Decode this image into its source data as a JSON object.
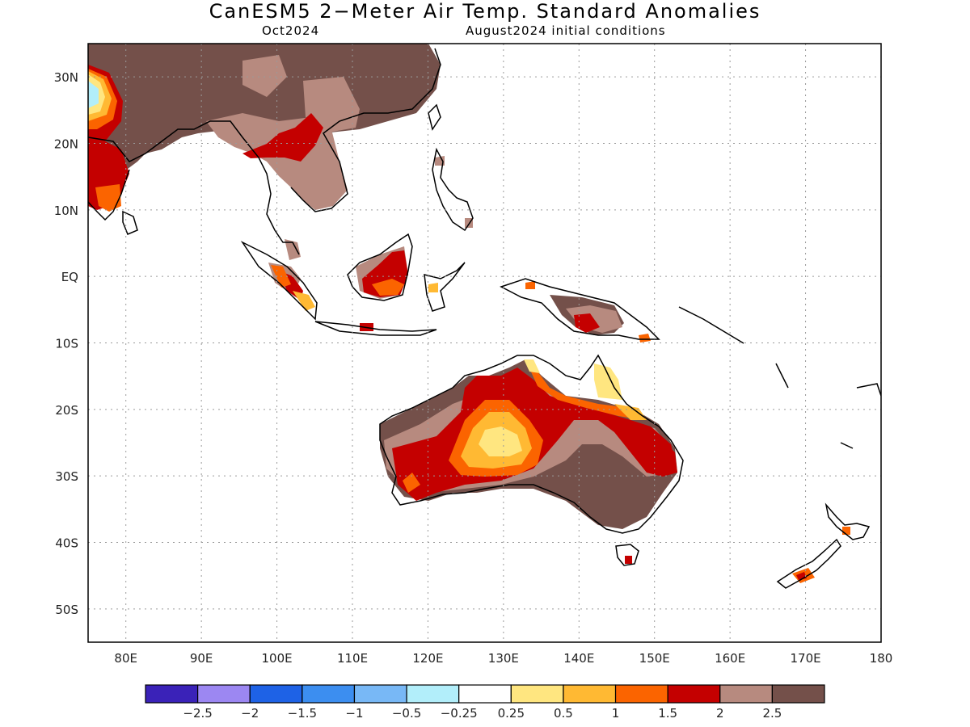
{
  "header": {
    "title": "CanESM5 2−Meter Air Temp. Standard Anomalies",
    "valid_month": "Oct2024",
    "init_conditions": "August2024 initial conditions"
  },
  "map": {
    "lon_range": [
      75,
      180
    ],
    "lat_range": [
      -55,
      35
    ],
    "lon_ticks": [
      "80E",
      "90E",
      "100E",
      "110E",
      "120E",
      "130E",
      "140E",
      "150E",
      "160E",
      "170E",
      "180"
    ],
    "lat_ticks": [
      "30N",
      "20N",
      "10N",
      "EQ",
      "10S",
      "20S",
      "30S",
      "40S",
      "50S"
    ],
    "lon_values": [
      80,
      90,
      100,
      110,
      120,
      130,
      140,
      150,
      160,
      170,
      180
    ],
    "lat_values": [
      30,
      20,
      10,
      0,
      -10,
      -20,
      -30,
      -40,
      -50
    ]
  },
  "legend": {
    "colors": [
      "#3a22b8",
      "#9c87f2",
      "#1e62e6",
      "#3c8ef0",
      "#78b8f6",
      "#b2eefa",
      "#ffffff",
      "#ffe680",
      "#ffb933",
      "#fb6400",
      "#c40000",
      "#b78a7f",
      "#74504a"
    ],
    "labels": [
      "−2.5",
      "−2",
      "−1.5",
      "−1",
      "−0.5",
      "−0.25",
      "0.25",
      "0.5",
      "1",
      "1.5",
      "2",
      "2.5"
    ]
  }
}
